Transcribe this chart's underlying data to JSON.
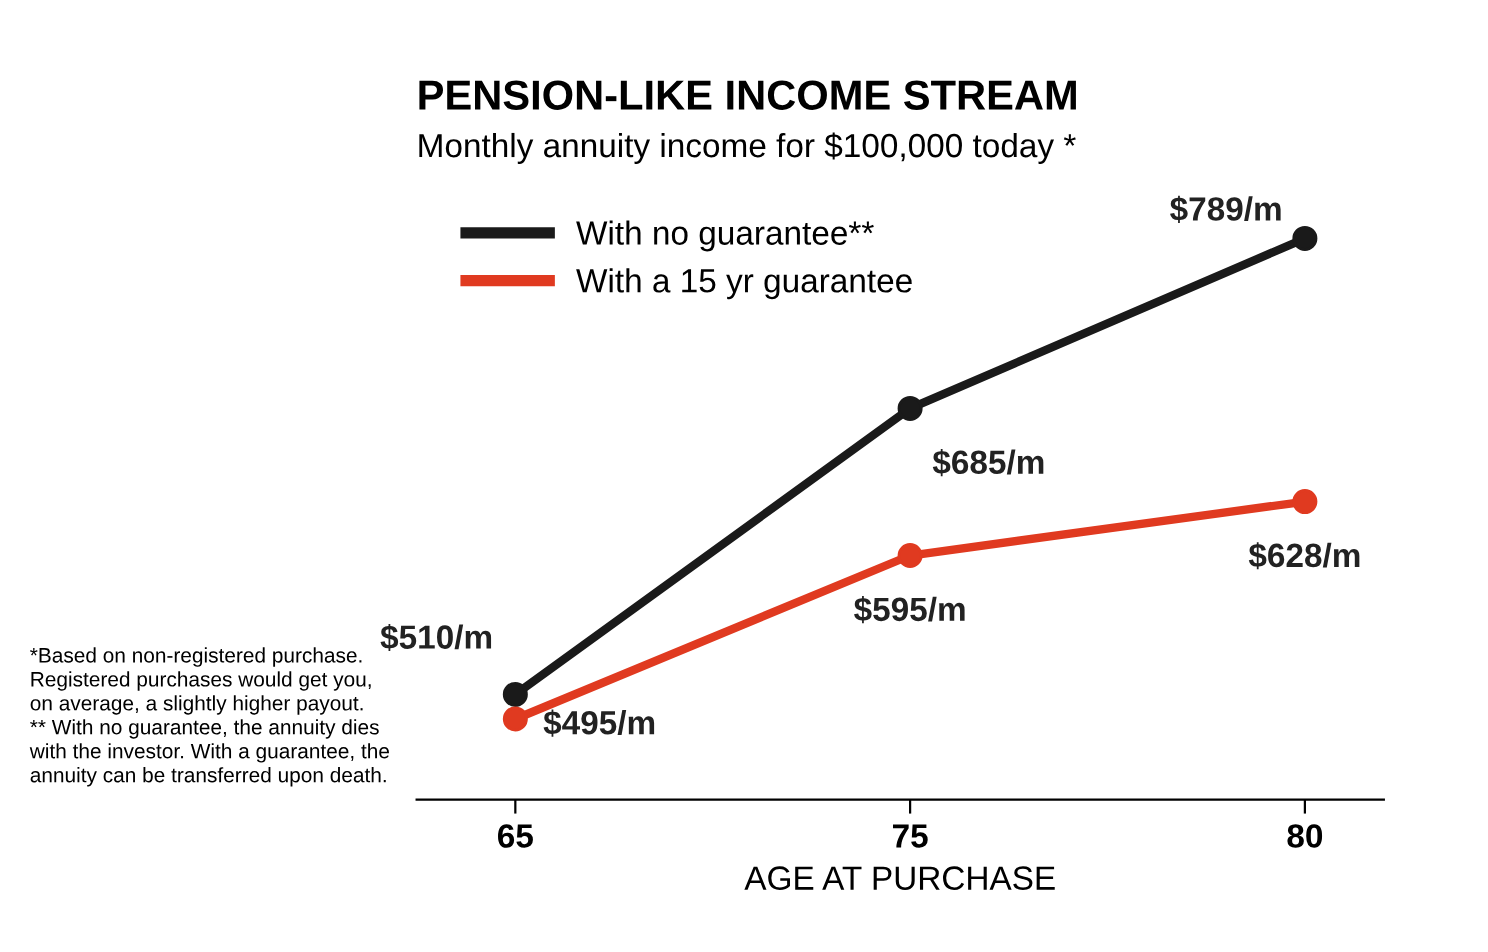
{
  "chart_data": {
    "type": "line",
    "title": "PENSION-LIKE INCOME STREAM",
    "subtitle": "Monthly annuity income for $100,000 today *",
    "xlabel": "AGE AT PURCHASE",
    "categories": [
      "65",
      "75",
      "80"
    ],
    "series": [
      {
        "name": "With no guarantee**",
        "color": "#1a1a1a",
        "values": [
          510,
          685,
          789
        ],
        "value_labels": [
          "$510/m",
          "$685/m",
          "$789/m"
        ]
      },
      {
        "name": "With a 15 yr guarantee",
        "color": "#e03a20",
        "values": [
          495,
          595,
          628
        ],
        "value_labels": [
          "$495/m",
          "$595/m",
          "$628/m"
        ]
      }
    ],
    "marker": "circle",
    "line_style": "solid",
    "legend": "top left",
    "grid": false,
    "tick_labels": "x",
    "annotations": [
      "*Based on non-registered purchase.\nRegistered purchases would get you,\non average, a slightly higher payout.\n** With no guarantee, the annuity dies\nwith the investor. With a guarantee, the\nannuity can be transferred upon death."
    ]
  }
}
